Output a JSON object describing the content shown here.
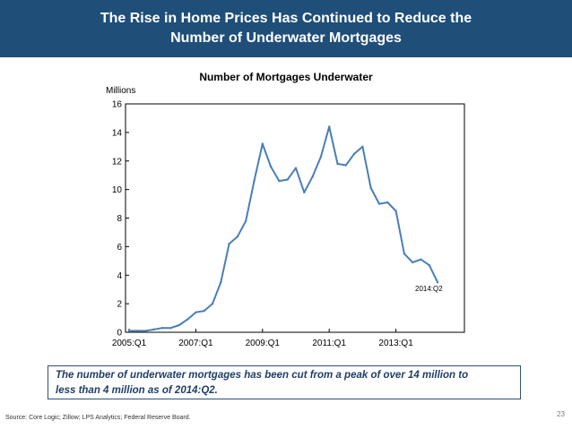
{
  "header": {
    "title_line1": "The Rise in Home Prices Has Continued to Reduce the",
    "title_line2": "Number of Underwater Mortgages",
    "background": "#1f4e79"
  },
  "chart_data": {
    "type": "line",
    "title": "Number of Mortgages Underwater",
    "ylabel": "Millions",
    "xlabel": "",
    "ylim": [
      0,
      16
    ],
    "yticks": [
      0,
      2,
      4,
      6,
      8,
      10,
      12,
      14,
      16
    ],
    "xtick_labels": [
      "2005:Q1",
      "2007:Q1",
      "2009:Q1",
      "2011:Q1",
      "2013:Q1"
    ],
    "grid": false,
    "line_color": "#4a7fb5",
    "series": [
      {
        "x": [
          "2005:Q1",
          "2005:Q2",
          "2005:Q3",
          "2005:Q4",
          "2006:Q1",
          "2006:Q2",
          "2006:Q3",
          "2006:Q4",
          "2007:Q1",
          "2007:Q2",
          "2007:Q3",
          "2007:Q4",
          "2008:Q1",
          "2008:Q2",
          "2008:Q3",
          "2008:Q4",
          "2009:Q1",
          "2009:Q2",
          "2009:Q3",
          "2009:Q4",
          "2010:Q1",
          "2010:Q2",
          "2010:Q3",
          "2010:Q4",
          "2011:Q1",
          "2011:Q2",
          "2011:Q3",
          "2011:Q4",
          "2012:Q1",
          "2012:Q2",
          "2012:Q3",
          "2012:Q4",
          "2013:Q1",
          "2013:Q2",
          "2013:Q3",
          "2013:Q4",
          "2014:Q1",
          "2014:Q2"
        ],
        "values": [
          0.1,
          0.1,
          0.1,
          0.2,
          0.3,
          0.3,
          0.5,
          0.9,
          1.4,
          1.5,
          2.0,
          3.5,
          6.2,
          6.7,
          7.8,
          10.6,
          13.2,
          11.6,
          10.6,
          10.7,
          11.5,
          9.8,
          10.9,
          12.3,
          14.4,
          11.8,
          11.7,
          12.5,
          13.0,
          10.1,
          9.0,
          9.1,
          8.5,
          5.5,
          4.9,
          5.1,
          4.7,
          3.5
        ]
      }
    ],
    "annotations": [
      "2014:Q2"
    ]
  },
  "callout": {
    "line1": "The number of underwater mortgages has been cut from a peak of over 14 million to",
    "line2": "less than 4 million as of 2014:Q2."
  },
  "footer": {
    "source": "Source: Core Logic; Zillow; LPS Analytics; Federal Reserve Board.",
    "page_number": "23"
  }
}
